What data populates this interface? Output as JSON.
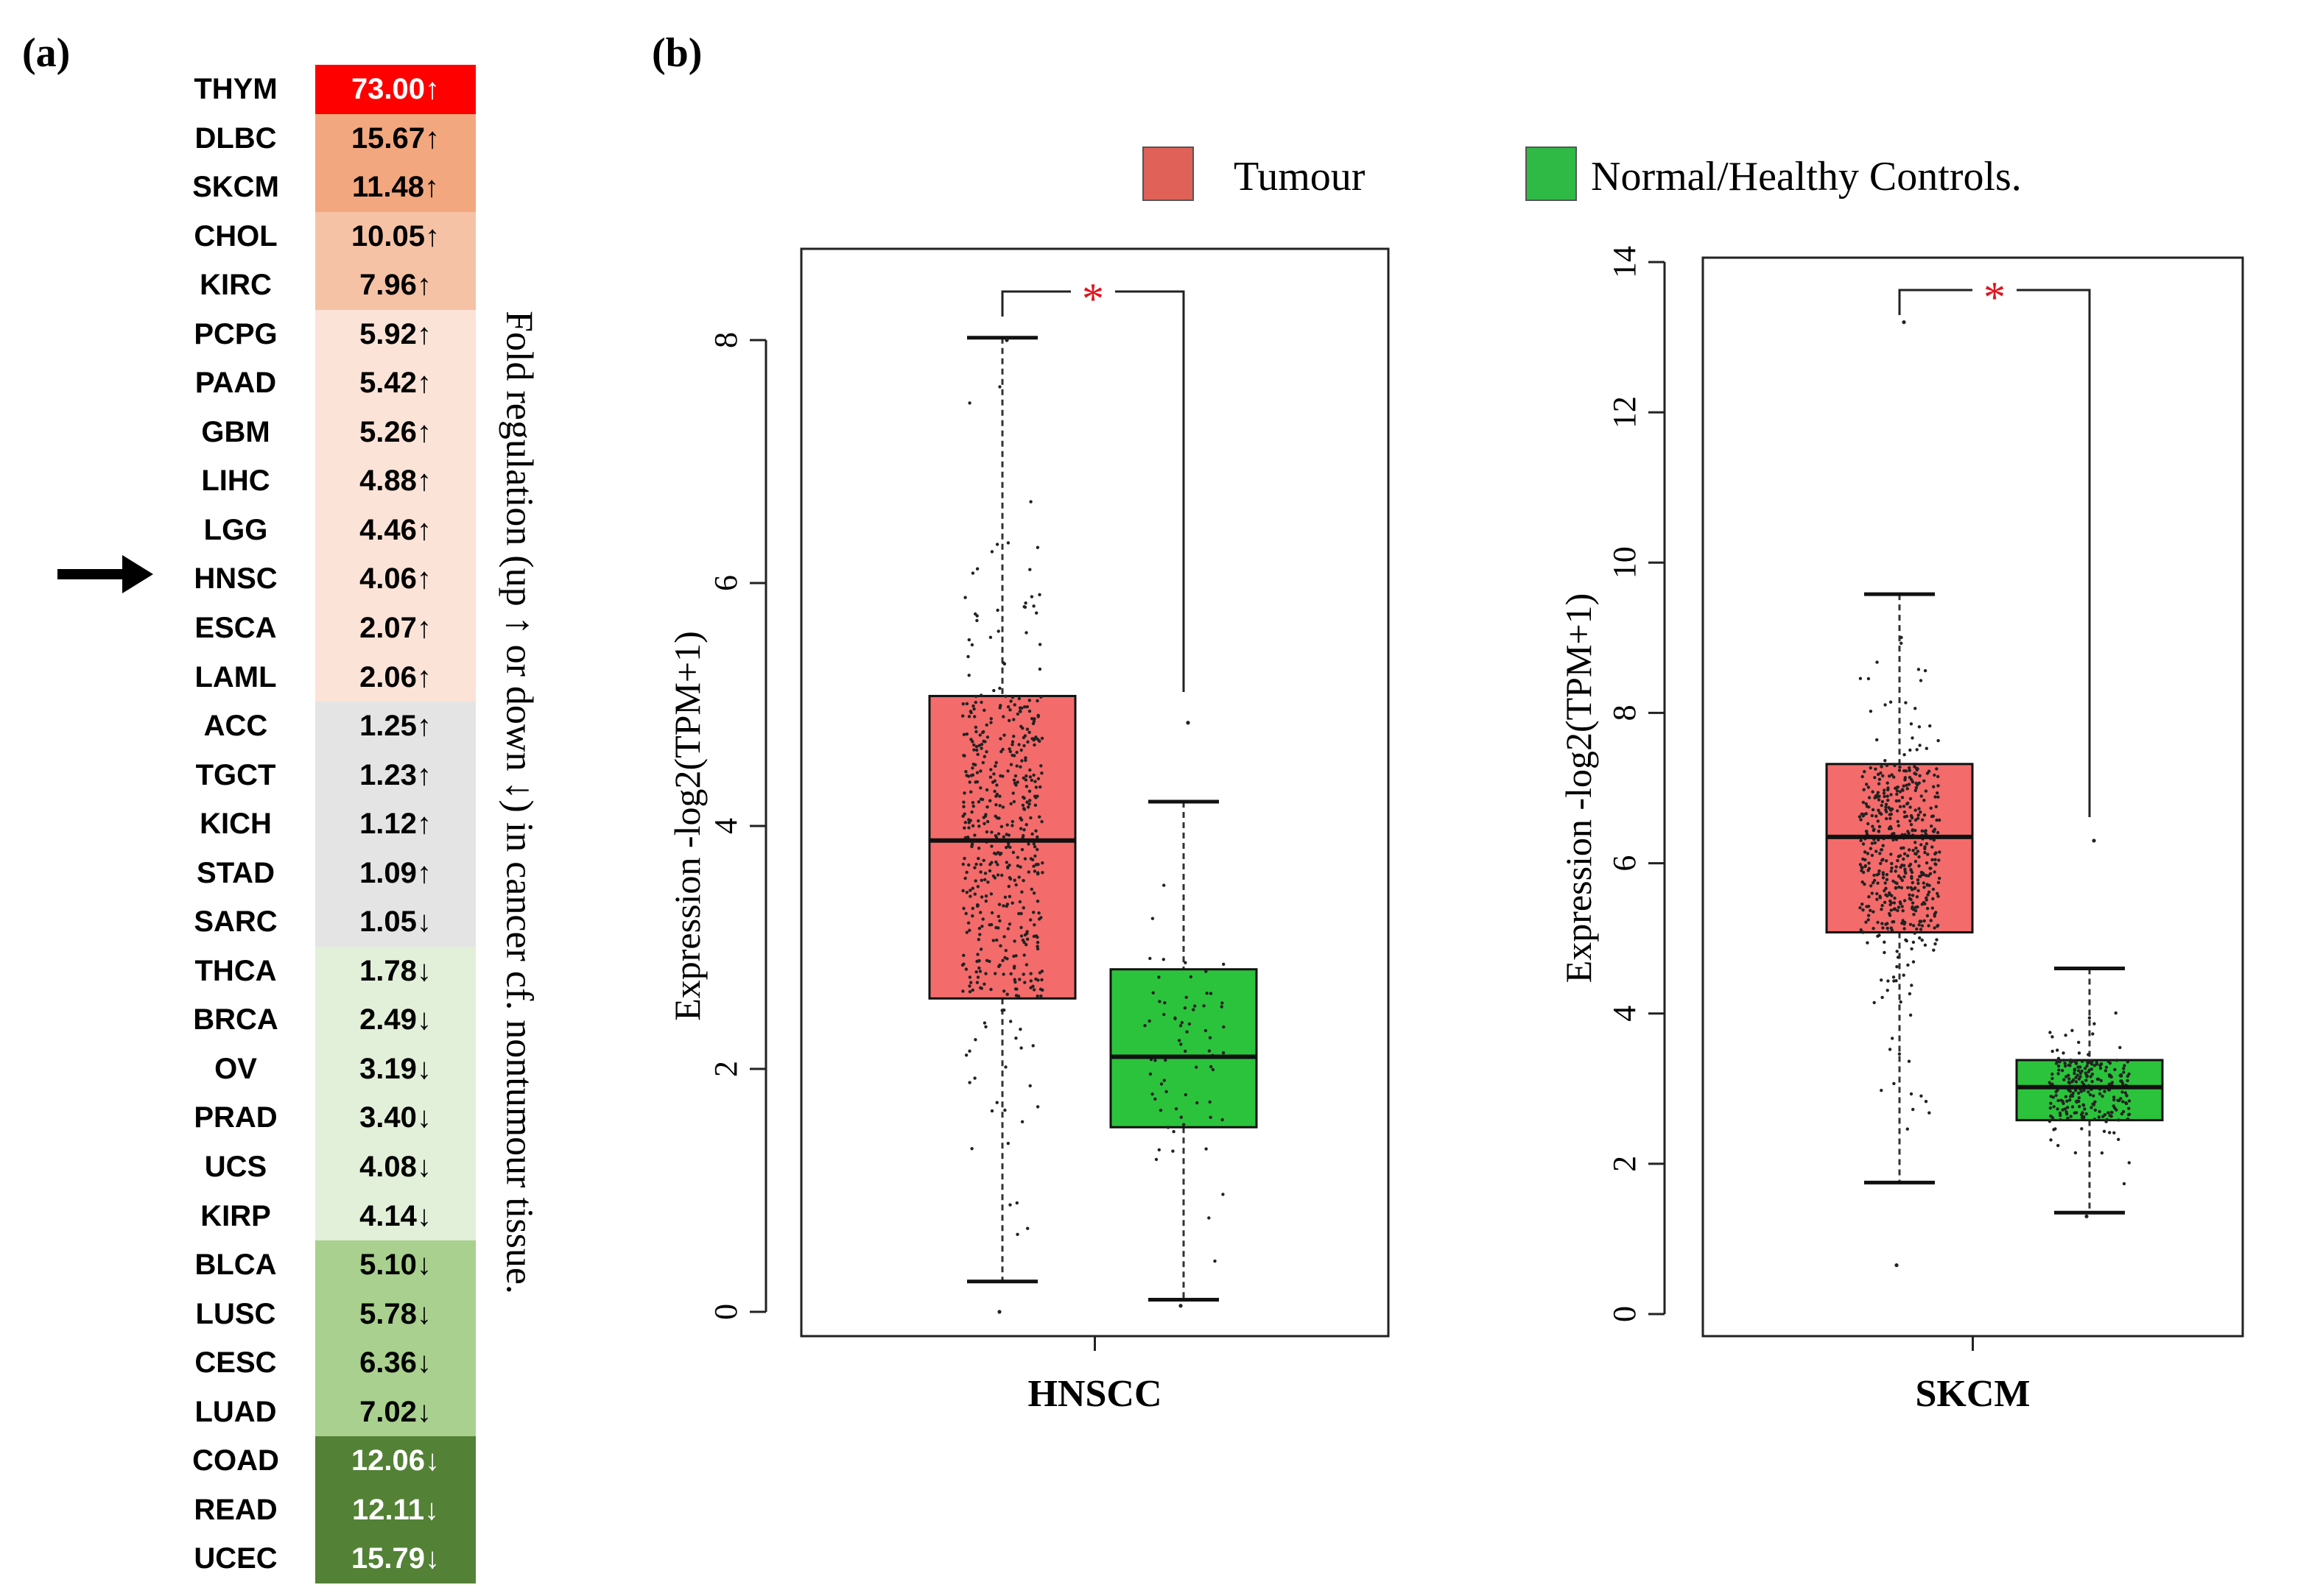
{
  "panel_a": {
    "label": "(a)",
    "side_label": "Fold regulation (up ↑ or down ↓) in cancer cf. nontumour tissue.",
    "rows": [
      {
        "name": "THYM",
        "value": "73.00",
        "dir": "↑",
        "bg": "#ff0000",
        "fg": "#ffffff"
      },
      {
        "name": "DLBC",
        "value": "15.67",
        "dir": "↑",
        "bg": "#f2a77f",
        "fg": "#000000"
      },
      {
        "name": "SKCM",
        "value": "11.48",
        "dir": "↑",
        "bg": "#f2a77f",
        "fg": "#000000"
      },
      {
        "name": "CHOL",
        "value": "10.05",
        "dir": "↑",
        "bg": "#f6c2a5",
        "fg": "#000000"
      },
      {
        "name": "KIRC",
        "value": "7.96",
        "dir": "↑",
        "bg": "#f6c2a5",
        "fg": "#000000"
      },
      {
        "name": "PCPG",
        "value": "5.92",
        "dir": "↑",
        "bg": "#fce3d7",
        "fg": "#000000"
      },
      {
        "name": "PAAD",
        "value": "5.42",
        "dir": "↑",
        "bg": "#fce3d7",
        "fg": "#000000"
      },
      {
        "name": "GBM",
        "value": "5.26",
        "dir": "↑",
        "bg": "#fce3d7",
        "fg": "#000000"
      },
      {
        "name": "LIHC",
        "value": "4.88",
        "dir": "↑",
        "bg": "#fce3d7",
        "fg": "#000000"
      },
      {
        "name": "LGG",
        "value": "4.46",
        "dir": "↑",
        "bg": "#fce3d7",
        "fg": "#000000"
      },
      {
        "name": "HNSC",
        "value": "4.06",
        "dir": "↑",
        "bg": "#fce3d7",
        "fg": "#000000"
      },
      {
        "name": "ESCA",
        "value": "2.07",
        "dir": "↑",
        "bg": "#fce3d7",
        "fg": "#000000"
      },
      {
        "name": "LAML",
        "value": "2.06",
        "dir": "↑",
        "bg": "#fce3d7",
        "fg": "#000000"
      },
      {
        "name": "ACC",
        "value": "1.25",
        "dir": "↑",
        "bg": "#e4e4e4",
        "fg": "#000000"
      },
      {
        "name": "TGCT",
        "value": "1.23",
        "dir": "↑",
        "bg": "#e4e4e4",
        "fg": "#000000"
      },
      {
        "name": "KICH",
        "value": "1.12",
        "dir": "↑",
        "bg": "#e4e4e4",
        "fg": "#000000"
      },
      {
        "name": "STAD",
        "value": "1.09",
        "dir": "↑",
        "bg": "#e4e4e4",
        "fg": "#000000"
      },
      {
        "name": "SARC",
        "value": "1.05",
        "dir": "↓",
        "bg": "#e4e4e4",
        "fg": "#000000"
      },
      {
        "name": "THCA",
        "value": "1.78",
        "dir": "↓",
        "bg": "#e2efd9",
        "fg": "#000000"
      },
      {
        "name": "BRCA",
        "value": "2.49",
        "dir": "↓",
        "bg": "#e2efd9",
        "fg": "#000000"
      },
      {
        "name": "OV",
        "value": "3.19",
        "dir": "↓",
        "bg": "#e2efd9",
        "fg": "#000000"
      },
      {
        "name": "PRAD",
        "value": "3.40",
        "dir": "↓",
        "bg": "#e2efd9",
        "fg": "#000000"
      },
      {
        "name": "UCS",
        "value": "4.08",
        "dir": "↓",
        "bg": "#e2efd9",
        "fg": "#000000"
      },
      {
        "name": "KIRP",
        "value": "4.14",
        "dir": "↓",
        "bg": "#e2efd9",
        "fg": "#000000"
      },
      {
        "name": "BLCA",
        "value": "5.10",
        "dir": "↓",
        "bg": "#a9d08e",
        "fg": "#000000"
      },
      {
        "name": "LUSC",
        "value": "5.78",
        "dir": "↓",
        "bg": "#a9d08e",
        "fg": "#000000"
      },
      {
        "name": "CESC",
        "value": "6.36",
        "dir": "↓",
        "bg": "#a9d08e",
        "fg": "#000000"
      },
      {
        "name": "LUAD",
        "value": "7.02",
        "dir": "↓",
        "bg": "#a9d08e",
        "fg": "#000000"
      },
      {
        "name": "COAD",
        "value": "12.06",
        "dir": "↓",
        "bg": "#538135",
        "fg": "#ffffff"
      },
      {
        "name": "READ",
        "value": "12.11",
        "dir": "↓",
        "bg": "#538135",
        "fg": "#ffffff"
      },
      {
        "name": "UCEC",
        "value": "15.79",
        "dir": "↓",
        "bg": "#538135",
        "fg": "#ffffff"
      }
    ],
    "highlighted_row": "HNSC",
    "arrow_icon": "right-arrow-icon"
  },
  "panel_b": {
    "label": "(b)",
    "legend": [
      {
        "name": "Tumour",
        "color": "#e06158"
      },
      {
        "name": "Normal/Healthy Controls.",
        "color": "#2fb945"
      }
    ]
  },
  "chart_data": [
    {
      "type": "box",
      "xlabel": "HNSCC",
      "ylabel": "Expression -log2(TPM+1)",
      "ylim": [
        0,
        8
      ],
      "yticks": [
        0,
        2,
        4,
        6,
        8
      ],
      "significance": "*",
      "colors": {
        "tumour": "#f36b6b",
        "normal": "#2cc33c"
      },
      "series": [
        {
          "name": "Tumour",
          "whisker_low": 0.25,
          "q1": 2.58,
          "median": 3.88,
          "q3": 5.07,
          "whisker_high": 8.02,
          "points_min": 0.0,
          "points_max": 8.0
        },
        {
          "name": "Normal/Healthy Controls.",
          "whisker_low": 0.1,
          "q1": 1.52,
          "median": 2.1,
          "q3": 2.82,
          "whisker_high": 4.2,
          "points_min": 0.05,
          "points_max": 4.85
        }
      ]
    },
    {
      "type": "box",
      "xlabel": "SKCM",
      "ylabel": "Expression -log2(TPM+1)",
      "ylim": [
        0,
        14
      ],
      "yticks": [
        0,
        2,
        4,
        6,
        8,
        10,
        12,
        14
      ],
      "significance": "*",
      "colors": {
        "tumour": "#f36b6b",
        "normal": "#2cc33c"
      },
      "series": [
        {
          "name": "Tumour",
          "whisker_low": 1.75,
          "q1": 5.08,
          "median": 6.35,
          "q3": 7.32,
          "whisker_high": 9.58,
          "points_min": 0.65,
          "points_max": 13.2
        },
        {
          "name": "Normal/Healthy Controls.",
          "whisker_low": 1.35,
          "q1": 2.58,
          "median": 3.02,
          "q3": 3.38,
          "whisker_high": 4.6,
          "points_min": 1.3,
          "points_max": 6.3
        }
      ]
    }
  ]
}
